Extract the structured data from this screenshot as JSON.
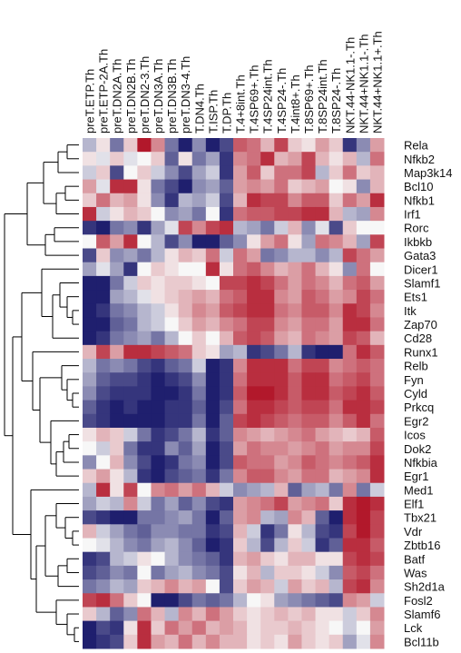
{
  "chart_data": {
    "type": "heatmap",
    "columns": [
      "preT.ETP.Th",
      "preT.ETP-2A.Th",
      "preT.DN2A.Th",
      "preT.DN2B.Th",
      "preT.DN2-3.Th",
      "preT.DN3A.Th",
      "preT.DN3B.Th",
      "preT.DN3-4.Th",
      "T.DN4.Th",
      "T.ISP.Th",
      "T.DP.Th",
      "T.4+8int.Th",
      "T.4SP69+.Th",
      "T.4SP24int.Th",
      "T.4SP24-.Th",
      "T.4int8+.Th",
      "T.8SP69+.Th",
      "T.8SP24int.Th",
      "T.8SP24-.Th",
      "NKT.44-NK1.1-.Th",
      "NKT.44+NK1.1-.Th",
      "NKT.44+NK1.1+.Th"
    ],
    "rows": [
      "Rela",
      "Nfkb2",
      "Map3k14",
      "Bcl10",
      "Nfkb1",
      "Irf1",
      "Rorc",
      "Ikbkb",
      "Gata3",
      "Dicer1",
      "Slamf1",
      "Ets1",
      "Itk",
      "Zap70",
      "Cd28",
      "Runx1",
      "Relb",
      "Fyn",
      "Cyld",
      "Prkcq",
      "Egr2",
      "Icos",
      "Dok2",
      "Nfkbia",
      "Egr1",
      "Med1",
      "Elf1",
      "Tbx21",
      "Vdr",
      "Zbtb16",
      "Batf",
      "Was",
      "Sh2d1a",
      "Fosl2",
      "Slamf6",
      "Lck",
      "Bcl11b"
    ],
    "color_scale": {
      "low": "#1f1f6e",
      "mid": "#f7f7f7",
      "high": "#b2182b"
    },
    "values": [
      [
        -0.3,
        0.1,
        -0.6,
        0.2,
        1.0,
        0.5,
        -0.6,
        -1.0,
        -0.5,
        -1.0,
        -0.8,
        0.7,
        0.6,
        0.3,
        0.8,
        0.2,
        0.1,
        0.4,
        0.2,
        -0.9,
        -0.5,
        0.4
      ],
      [
        0.1,
        -0.1,
        0.2,
        -0.1,
        0.0,
        0.2,
        -0.7,
        0.1,
        -0.6,
        -0.4,
        -0.9,
        0.5,
        0.6,
        0.9,
        0.3,
        0.4,
        0.8,
        0.3,
        0.1,
        0.3,
        -0.3,
        0.6
      ],
      [
        -0.2,
        0.2,
        -0.8,
        0.0,
        0.2,
        -0.2,
        -0.5,
        -0.8,
        -0.4,
        -0.2,
        -0.9,
        0.4,
        0.7,
        0.2,
        0.6,
        0.6,
        0.8,
        -0.3,
        0.2,
        0.6,
        0.2,
        0.3
      ],
      [
        0.4,
        -0.1,
        0.9,
        0.9,
        0.1,
        -0.6,
        -0.8,
        -1.0,
        -0.5,
        -0.4,
        -0.7,
        0.4,
        0.5,
        0.4,
        0.6,
        0.2,
        0.3,
        0.4,
        0.0,
        0.1,
        -0.5,
        0.3
      ],
      [
        0.2,
        0.6,
        0.3,
        0.4,
        0.1,
        -0.5,
        -0.9,
        -0.3,
        -0.4,
        -0.2,
        -0.8,
        0.3,
        0.9,
        0.8,
        0.8,
        0.5,
        0.7,
        0.7,
        0.2,
        0.6,
        0.4,
        0.9
      ],
      [
        0.9,
        -0.2,
        0.1,
        0.3,
        0.2,
        0.0,
        -0.5,
        -0.4,
        -0.6,
        0.0,
        -0.9,
        0.6,
        0.7,
        0.7,
        0.8,
        0.8,
        0.9,
        0.9,
        0.3,
        -0.3,
        -0.4,
        0.5
      ],
      [
        -0.9,
        -1.0,
        -0.6,
        -0.5,
        -0.9,
        -0.4,
        -0.1,
        0.8,
        0.5,
        0.8,
        0.9,
        -0.3,
        -0.4,
        -0.6,
        -0.2,
        0.3,
        -0.5,
        -0.1,
        -0.8,
        0.2,
        0.0,
        0.0
      ],
      [
        0.0,
        0.7,
        0.4,
        0.9,
        0.0,
        -0.3,
        -0.8,
        -0.5,
        -1.0,
        -1.0,
        -0.7,
        -0.5,
        0.1,
        0.4,
        0.6,
        0.1,
        -0.4,
        0.6,
        0.5,
        0.3,
        -0.4,
        0.8
      ],
      [
        -0.8,
        0.2,
        -0.5,
        -0.4,
        -0.6,
        -0.3,
        0.1,
        0.3,
        0.2,
        0.6,
        -0.2,
        0.6,
        0.4,
        -0.6,
        -0.5,
        -0.3,
        -0.3,
        -0.5,
        -0.3,
        0.8,
        0.6,
        0.4
      ],
      [
        -0.4,
        -0.1,
        -0.4,
        -0.9,
        0.0,
        0.2,
        0.1,
        0.0,
        0.0,
        0.9,
        0.1,
        0.6,
        0.7,
        0.5,
        0.3,
        0.4,
        0.6,
        0.3,
        0.1,
        -0.5,
        0.6,
        0.0
      ],
      [
        -1.0,
        -1.0,
        -0.6,
        -0.2,
        0.2,
        0.1,
        0.2,
        0.2,
        0.1,
        0.0,
        0.8,
        0.8,
        0.9,
        0.8,
        0.6,
        0.4,
        0.6,
        0.5,
        0.3,
        0.6,
        0.7,
        0.4
      ],
      [
        -1.0,
        -1.0,
        -0.4,
        -0.3,
        -0.1,
        0.1,
        0.2,
        0.3,
        0.4,
        0.3,
        0.6,
        0.7,
        0.9,
        0.9,
        0.5,
        0.4,
        0.7,
        0.6,
        0.4,
        0.5,
        0.8,
        0.6
      ],
      [
        -1.0,
        -0.9,
        -0.6,
        -0.5,
        -0.3,
        -0.2,
        0.1,
        0.3,
        0.5,
        0.4,
        0.7,
        0.8,
        0.9,
        0.9,
        0.6,
        0.5,
        0.7,
        0.7,
        0.5,
        0.9,
        0.8,
        0.5
      ],
      [
        -1.0,
        -1.0,
        -0.7,
        -0.6,
        -0.3,
        -0.2,
        0.0,
        0.2,
        0.4,
        0.3,
        0.5,
        0.6,
        0.8,
        0.8,
        0.5,
        0.4,
        0.6,
        0.6,
        0.4,
        0.9,
        0.9,
        0.6
      ],
      [
        -1.0,
        -0.9,
        -0.6,
        -0.5,
        -0.4,
        -0.6,
        -0.3,
        0.0,
        0.2,
        0.0,
        0.3,
        0.7,
        0.8,
        0.7,
        0.4,
        0.3,
        0.6,
        0.5,
        0.4,
        0.8,
        0.7,
        0.3
      ],
      [
        0.3,
        0.8,
        0.4,
        0.9,
        0.9,
        0.8,
        0.7,
        0.6,
        0.2,
        0.1,
        -0.4,
        -0.3,
        -0.9,
        -0.8,
        -0.6,
        -0.3,
        -0.9,
        -1.0,
        -1.0,
        0.6,
        0.9,
        0.7
      ],
      [
        -0.3,
        -0.6,
        -0.5,
        -0.6,
        -0.8,
        -0.9,
        -0.7,
        -0.6,
        -0.2,
        -1.0,
        -0.9,
        0.5,
        0.9,
        0.9,
        0.9,
        0.6,
        0.8,
        0.8,
        0.5,
        0.6,
        0.7,
        0.6
      ],
      [
        -0.4,
        -0.7,
        -0.8,
        -0.8,
        -0.9,
        -1.0,
        -0.9,
        -0.8,
        -0.5,
        -1.0,
        -0.9,
        0.6,
        0.9,
        0.9,
        0.9,
        0.7,
        0.9,
        0.9,
        0.6,
        0.7,
        0.8,
        0.6
      ],
      [
        -0.5,
        -0.8,
        -0.9,
        -0.9,
        -0.9,
        -1.0,
        -1.0,
        -0.9,
        -0.6,
        -1.0,
        -0.9,
        0.7,
        1.0,
        1.0,
        0.9,
        0.7,
        0.9,
        0.9,
        0.7,
        0.8,
        0.9,
        0.7
      ],
      [
        -0.7,
        -0.9,
        -1.0,
        -0.9,
        -1.0,
        -1.0,
        -0.9,
        -0.9,
        -0.7,
        -1.0,
        -0.8,
        0.6,
        0.9,
        0.9,
        0.8,
        0.7,
        0.8,
        0.8,
        0.6,
        0.9,
        0.9,
        0.8
      ],
      [
        -0.8,
        -0.9,
        -1.0,
        -1.0,
        -1.0,
        -1.0,
        -0.9,
        -0.9,
        -0.6,
        -1.0,
        -0.7,
        0.8,
        0.9,
        0.8,
        0.7,
        0.6,
        0.7,
        0.7,
        0.5,
        0.7,
        0.9,
        0.6
      ],
      [
        0.1,
        0.3,
        0.2,
        -0.2,
        -0.6,
        -0.9,
        -0.8,
        -0.6,
        -0.3,
        -0.9,
        -0.7,
        0.5,
        0.4,
        0.3,
        0.4,
        0.5,
        0.6,
        0.4,
        0.3,
        0.2,
        0.3,
        0.7
      ],
      [
        0.0,
        -0.2,
        0.2,
        -0.6,
        -0.9,
        -0.9,
        -0.5,
        -0.7,
        -0.4,
        -1.0,
        -0.8,
        0.4,
        0.6,
        0.5,
        0.5,
        0.4,
        0.5,
        0.6,
        0.4,
        0.5,
        0.5,
        0.8
      ],
      [
        -0.5,
        0.0,
        0.3,
        -0.5,
        -0.8,
        -1.0,
        -0.9,
        -0.6,
        -0.5,
        -1.0,
        -0.8,
        0.7,
        0.6,
        0.6,
        0.4,
        0.5,
        0.7,
        0.6,
        0.5,
        0.6,
        0.7,
        0.9
      ],
      [
        0.2,
        0.4,
        0.1,
        -0.3,
        -0.9,
        -1.0,
        -0.8,
        -0.7,
        -0.6,
        -0.9,
        -0.6,
        0.5,
        0.7,
        0.7,
        0.5,
        0.4,
        0.6,
        0.6,
        0.3,
        0.4,
        0.5,
        0.9
      ],
      [
        -0.3,
        0.9,
        0.1,
        0.8,
        0.0,
        0.5,
        0.6,
        0.4,
        0.6,
        0.3,
        -0.2,
        -0.5,
        -0.4,
        -0.3,
        0.3,
        -0.7,
        -0.4,
        -0.3,
        -0.6,
        0.5,
        -0.6,
        -0.2
      ],
      [
        -0.4,
        -0.2,
        -0.3,
        0.5,
        -0.2,
        -0.6,
        -0.4,
        -0.7,
        -0.5,
        -0.8,
        -0.9,
        0.4,
        0.5,
        0.6,
        0.8,
        0.4,
        0.5,
        0.6,
        0.2,
        0.9,
        1.0,
        0.9
      ],
      [
        -0.8,
        -0.9,
        -1.0,
        -1.0,
        -0.6,
        -0.6,
        -0.5,
        -0.4,
        -0.6,
        -1.0,
        -0.7,
        0.4,
        0.5,
        -0.3,
        -0.4,
        0.5,
        0.3,
        -0.7,
        -1.0,
        0.9,
        1.0,
        0.8
      ],
      [
        0.3,
        -0.2,
        -0.4,
        -0.6,
        -0.7,
        -0.5,
        -0.5,
        -0.6,
        -0.6,
        -0.9,
        -0.8,
        0.3,
        -0.2,
        -0.9,
        -0.6,
        0.1,
        -0.3,
        -0.8,
        -0.9,
        0.8,
        1.0,
        0.8
      ],
      [
        0.0,
        -0.1,
        -0.3,
        -0.5,
        -0.6,
        -0.4,
        -0.3,
        -0.5,
        -0.7,
        -1.0,
        -0.9,
        0.2,
        -0.3,
        -0.8,
        -0.3,
        0.2,
        -0.2,
        -0.9,
        -0.7,
        0.9,
        0.9,
        0.7
      ],
      [
        -0.9,
        -0.8,
        -0.3,
        -0.2,
        0.1,
        0.0,
        -0.3,
        -0.5,
        -0.6,
        -0.7,
        -0.9,
        0.3,
        0.4,
        0.2,
        0.1,
        0.3,
        0.3,
        0.1,
        0.1,
        0.8,
        0.9,
        0.8
      ],
      [
        -0.8,
        -0.7,
        -0.5,
        -0.6,
        0.0,
        -0.6,
        -0.4,
        -0.3,
        -0.5,
        -0.6,
        -0.8,
        0.1,
        0.3,
        -0.3,
        0.2,
        0.2,
        0.1,
        -0.2,
        -0.5,
        0.7,
        0.8,
        0.6
      ],
      [
        -0.6,
        -0.5,
        -0.3,
        -0.4,
        0.2,
        0.3,
        0.5,
        0.3,
        0.4,
        0.0,
        -0.8,
        0.2,
        0.4,
        0.3,
        -0.2,
        0.4,
        0.2,
        0.3,
        -0.3,
        0.8,
        0.9,
        0.5
      ],
      [
        0.8,
        0.9,
        0.6,
        0.2,
        0.0,
        -1.0,
        -1.0,
        -0.8,
        -0.6,
        -0.7,
        -0.6,
        -0.3,
        0.0,
        0.1,
        -0.4,
        -0.5,
        -0.6,
        -0.7,
        -0.8,
        0.5,
        0.4,
        -0.2
      ],
      [
        0.2,
        -0.3,
        -0.7,
        -0.5,
        0.6,
        0.3,
        -0.3,
        0.5,
        0.3,
        0.6,
        0.4,
        0.2,
        0.1,
        0.2,
        0.3,
        0.2,
        0.3,
        0.1,
        0.1,
        -0.2,
        0.2,
        0.5
      ],
      [
        -1.0,
        -0.8,
        -0.9,
        0.1,
        0.9,
        0.2,
        0.6,
        0.4,
        0.6,
        0.3,
        0.4,
        0.3,
        0.1,
        0.2,
        0.2,
        0.3,
        0.2,
        0.1,
        0.0,
        -0.2,
        0.0,
        0.4
      ],
      [
        -1.0,
        -0.9,
        -0.8,
        0.2,
        0.9,
        0.4,
        0.3,
        0.6,
        0.3,
        0.5,
        0.3,
        0.3,
        0.1,
        0.2,
        0.1,
        0.4,
        0.2,
        0.1,
        0.2,
        -0.4,
        -0.1,
        0.5
      ]
    ]
  }
}
